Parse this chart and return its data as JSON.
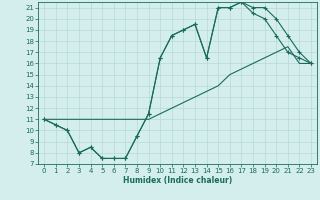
{
  "xlabel": "Humidex (Indice chaleur)",
  "background_color": "#d4eeee",
  "grid_color": "#b8d8d8",
  "line_color": "#1a6b5a",
  "xlim": [
    -0.5,
    23.5
  ],
  "ylim": [
    7,
    21.5
  ],
  "xticks": [
    0,
    1,
    2,
    3,
    4,
    5,
    6,
    7,
    8,
    9,
    10,
    11,
    12,
    13,
    14,
    15,
    16,
    17,
    18,
    19,
    20,
    21,
    22,
    23
  ],
  "yticks": [
    7,
    8,
    9,
    10,
    11,
    12,
    13,
    14,
    15,
    16,
    17,
    18,
    19,
    20,
    21
  ],
  "line1_x": [
    0,
    1,
    2,
    3,
    4,
    5,
    6,
    7,
    8,
    9,
    10,
    11,
    12,
    13,
    14,
    15,
    16,
    17,
    18,
    19,
    20,
    21,
    22,
    23
  ],
  "line1_y": [
    11,
    10.5,
    10,
    8,
    8.5,
    7.5,
    7.5,
    7.5,
    9.5,
    11.5,
    16.5,
    18.5,
    19,
    19.5,
    16.5,
    21,
    21,
    21.5,
    20.5,
    20,
    18.5,
    17,
    16.5,
    16
  ],
  "line2_x": [
    0,
    1,
    2,
    3,
    4,
    5,
    6,
    7,
    8,
    9,
    10,
    11,
    12,
    13,
    14,
    15,
    16,
    17,
    18,
    19,
    20,
    21,
    22,
    23
  ],
  "line2_y": [
    11,
    11,
    11,
    11,
    11,
    11,
    11,
    11,
    11,
    11,
    11.5,
    12,
    12.5,
    13,
    13.5,
    14,
    15,
    15.5,
    16,
    16.5,
    17,
    17.5,
    16,
    16
  ],
  "line3_x": [
    0,
    1,
    2,
    3,
    4,
    5,
    6,
    7,
    8,
    9,
    10,
    11,
    12,
    13,
    14,
    15,
    16,
    17,
    18,
    19,
    20,
    21,
    22,
    23
  ],
  "line3_y": [
    11,
    10.5,
    10,
    8,
    8.5,
    7.5,
    7.5,
    7.5,
    9.5,
    11.5,
    16.5,
    18.5,
    19,
    19.5,
    16.5,
    21,
    21,
    21.5,
    21,
    21,
    20,
    18.5,
    17,
    16
  ]
}
